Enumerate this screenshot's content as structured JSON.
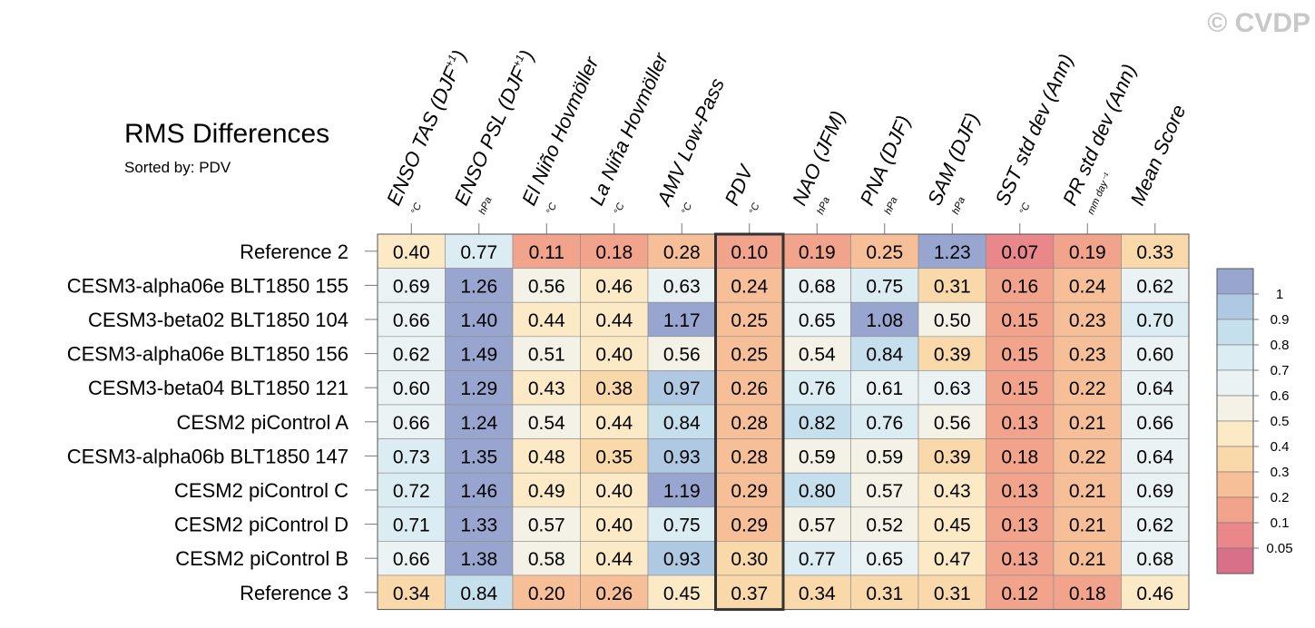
{
  "title": "RMS Differences",
  "subtitle": "Sorted by: PDV",
  "watermark": "© CVDP",
  "chart_data": {
    "type": "heatmap",
    "title": "RMS Differences",
    "subtitle": "Sorted by: PDV",
    "columns": [
      {
        "label": "ENSO TAS (DJF",
        "sup": "+1",
        "close": ")",
        "unit": "°C"
      },
      {
        "label": "ENSO PSL (DJF",
        "sup": "+1",
        "close": ")",
        "unit": "hPa"
      },
      {
        "label": "El Niño Hovmöller",
        "sup": "",
        "close": "",
        "unit": "°C"
      },
      {
        "label": "La Niña Hovmöller",
        "sup": "",
        "close": "",
        "unit": "°C"
      },
      {
        "label": "AMV Low-Pass",
        "sup": "",
        "close": "",
        "unit": "°C"
      },
      {
        "label": "PDV",
        "sup": "",
        "close": "",
        "unit": "°C"
      },
      {
        "label": "NAO (JFM)",
        "sup": "",
        "close": "",
        "unit": "hPa"
      },
      {
        "label": "PNA (DJF)",
        "sup": "",
        "close": "",
        "unit": "hPa"
      },
      {
        "label": "SAM (DJF)",
        "sup": "",
        "close": "",
        "unit": "hPa"
      },
      {
        "label": "SST std dev (Ann)",
        "sup": "",
        "close": "",
        "unit": "°C"
      },
      {
        "label": "PR std dev (Ann)",
        "sup": "",
        "close": "",
        "unit": "mm day⁻¹"
      },
      {
        "label": "Mean Score",
        "sup": "",
        "close": "",
        "unit": ""
      }
    ],
    "rows": [
      "Reference 2",
      "CESM3-alpha06e BLT1850 155",
      "CESM3-beta02 BLT1850 104",
      "CESM3-alpha06e BLT1850 156",
      "CESM3-beta04 BLT1850 121",
      "CESM2 piControl A",
      "CESM3-alpha06b BLT1850 147",
      "CESM2 piControl C",
      "CESM2 piControl D",
      "CESM2 piControl B",
      "Reference 3"
    ],
    "values": [
      [
        0.4,
        0.77,
        0.11,
        0.18,
        0.28,
        0.1,
        0.19,
        0.25,
        1.23,
        0.07,
        0.19,
        0.33
      ],
      [
        0.69,
        1.26,
        0.56,
        0.46,
        0.63,
        0.24,
        0.68,
        0.75,
        0.31,
        0.16,
        0.24,
        0.62
      ],
      [
        0.66,
        1.4,
        0.44,
        0.44,
        1.17,
        0.25,
        0.65,
        1.08,
        0.5,
        0.15,
        0.23,
        0.7
      ],
      [
        0.62,
        1.49,
        0.51,
        0.4,
        0.56,
        0.25,
        0.54,
        0.84,
        0.39,
        0.15,
        0.23,
        0.6
      ],
      [
        0.6,
        1.29,
        0.43,
        0.38,
        0.97,
        0.26,
        0.76,
        0.61,
        0.63,
        0.15,
        0.22,
        0.64
      ],
      [
        0.66,
        1.24,
        0.54,
        0.44,
        0.84,
        0.28,
        0.82,
        0.76,
        0.56,
        0.13,
        0.21,
        0.66
      ],
      [
        0.73,
        1.35,
        0.48,
        0.35,
        0.93,
        0.28,
        0.59,
        0.59,
        0.39,
        0.18,
        0.22,
        0.64
      ],
      [
        0.72,
        1.46,
        0.49,
        0.4,
        1.19,
        0.29,
        0.8,
        0.57,
        0.43,
        0.13,
        0.21,
        0.69
      ],
      [
        0.71,
        1.33,
        0.57,
        0.4,
        0.75,
        0.29,
        0.57,
        0.52,
        0.45,
        0.13,
        0.21,
        0.62
      ],
      [
        0.66,
        1.38,
        0.58,
        0.44,
        0.93,
        0.3,
        0.77,
        0.65,
        0.47,
        0.13,
        0.21,
        0.68
      ],
      [
        0.34,
        0.84,
        0.2,
        0.26,
        0.45,
        0.37,
        0.34,
        0.31,
        0.31,
        0.12,
        0.18,
        0.46
      ]
    ],
    "highlight_column": "PDV",
    "colorbar": {
      "labels": [
        "1",
        "0.9",
        "0.8",
        "0.7",
        "0.6",
        "0.5",
        "0.4",
        "0.3",
        "0.2",
        "0.1",
        "0.05"
      ],
      "colors": [
        "#97a5cf",
        "#b0c9e3",
        "#c5dfec",
        "#dbecf2",
        "#ebf2f3",
        "#f4f1e6",
        "#fbeac5",
        "#f9d8aa",
        "#f6bf98",
        "#f2a38c",
        "#e9878a",
        "#d97089"
      ]
    }
  }
}
